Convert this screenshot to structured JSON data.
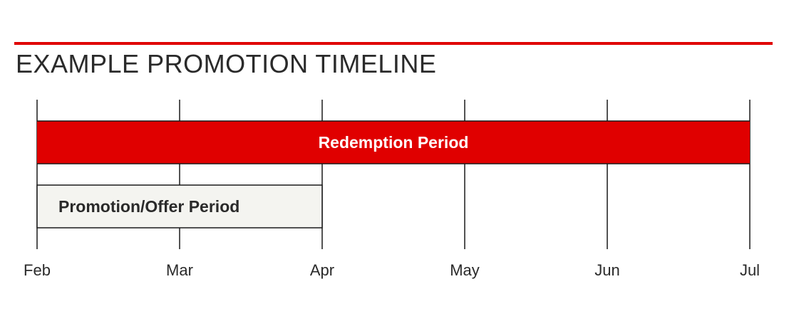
{
  "title": "EXAMPLE PROMOTION TIMELINE",
  "colors": {
    "accent": "#e00000",
    "offer_fill": "#f4f4f0",
    "line": "#1a1a1a",
    "text": "#2a2a2a",
    "bar_text": "#ffffff"
  },
  "chart_data": {
    "type": "timeline",
    "months": [
      "Feb",
      "Mar",
      "Apr",
      "May",
      "Jun",
      "Jul"
    ],
    "periods": [
      {
        "label": "Redemption Period",
        "start": "Feb",
        "end": "Jul",
        "style": "accent"
      },
      {
        "label": "Promotion/Offer Period",
        "start": "Feb",
        "end": "Apr",
        "style": "outline"
      }
    ]
  }
}
